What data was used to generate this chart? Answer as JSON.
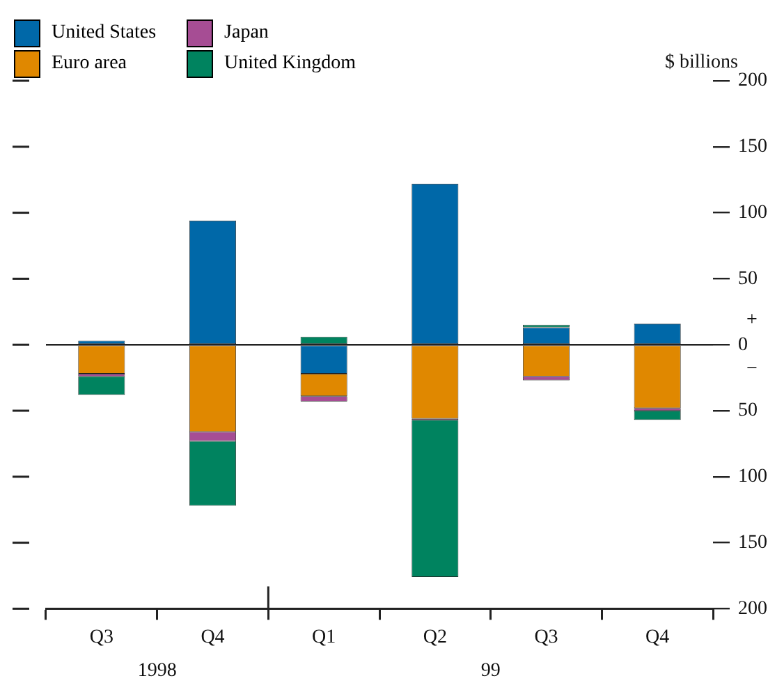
{
  "chart_data": {
    "type": "bar",
    "stacked": true,
    "ylabel": "$ billions",
    "legend": "top left",
    "grid": false,
    "categories": [
      "Q3",
      "Q4",
      "Q1",
      "Q2",
      "Q3",
      "Q4"
    ],
    "series": [
      {
        "name": "United States",
        "color": "#0068a8",
        "values": [
          3,
          94,
          -22,
          122,
          13,
          16
        ]
      },
      {
        "name": "Euro area",
        "color": "#e08800",
        "values": [
          -22,
          -66,
          -17,
          -56,
          -24,
          -48
        ]
      },
      {
        "name": "Japan",
        "color": "#a64d94",
        "values": [
          -2,
          -7,
          -4,
          -1,
          -3,
          -2
        ]
      },
      {
        "name": "United Kingdom",
        "color": "#00835f",
        "values": [
          -14,
          -49,
          6,
          -119,
          2,
          -7
        ]
      }
    ],
    "ylim": [
      -200,
      200
    ],
    "yticks": [
      {
        "value": -200,
        "label": "200"
      },
      {
        "value": -150,
        "label": "150"
      },
      {
        "value": -100,
        "label": "100"
      },
      {
        "value": -50,
        "label": "50"
      },
      0,
      50,
      100,
      150,
      200
    ],
    "ref_lines": [
      {
        "axis": "y",
        "value": 0
      }
    ],
    "annotations": [
      "+",
      "−",
      "1998",
      "99"
    ]
  }
}
